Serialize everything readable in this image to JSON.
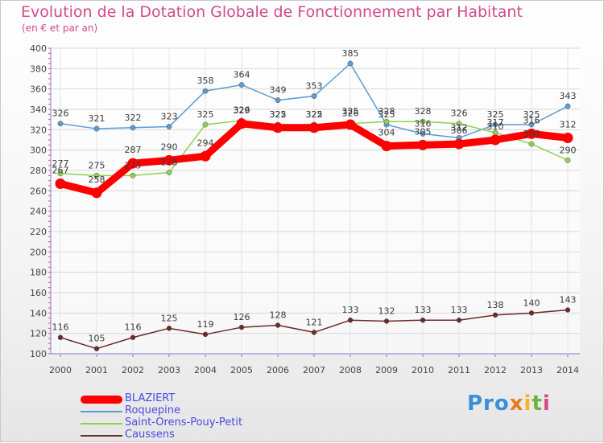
{
  "chart_data": {
    "type": "line",
    "title": "Evolution de la Dotation Globale de Fonctionnement par Habitant",
    "subtitle": "(en € et par an)",
    "x": [
      "2000",
      "2001",
      "2002",
      "2003",
      "2004",
      "2005",
      "2006",
      "2007",
      "2008",
      "2009",
      "2010",
      "2011",
      "2012",
      "2013",
      "2014"
    ],
    "ylim": [
      100,
      400
    ],
    "yticks": [
      100,
      120,
      140,
      160,
      180,
      200,
      220,
      240,
      260,
      280,
      300,
      320,
      340,
      360,
      380,
      400
    ],
    "series": [
      {
        "name": "Roquepine",
        "color": "#5b9bd5",
        "values": [
          326,
          321,
          322,
          323,
          358,
          364,
          349,
          353,
          385,
          325,
          316,
          312,
          325,
          325,
          343
        ]
      },
      {
        "name": "Saint-Orens-Pouy-Petit",
        "color": "#8fd14f",
        "values": [
          277,
          275,
          275,
          278,
          325,
          329,
          325,
          325,
          326,
          328,
          328,
          326,
          317,
          306,
          290
        ]
      },
      {
        "name": "Caussens",
        "color": "#6b2a2a",
        "values": [
          116,
          105,
          116,
          125,
          119,
          126,
          128,
          121,
          133,
          132,
          133,
          133,
          138,
          140,
          143
        ]
      },
      {
        "name": "BLAZIERT",
        "color": "#ff0000",
        "values": [
          267,
          258,
          287,
          290,
          294,
          326,
          322,
          322,
          325,
          304,
          305,
          306,
          310,
          316,
          312
        ]
      }
    ],
    "value_labels": [
      {
        "name": "Roquepine",
        "values": [
          "326",
          "321",
          "322",
          "323",
          "358",
          "364",
          "349",
          "353",
          "385",
          "325",
          "316",
          "312",
          "325",
          "325",
          "343"
        ]
      },
      {
        "name": "Saint-Orens-Pouy-Petit",
        "values": [
          "277",
          "275",
          "275",
          "278",
          "325",
          "329",
          "325",
          "325",
          "326",
          "328",
          "328",
          "326",
          "317",
          "306",
          "290"
        ]
      },
      {
        "name": "Caussens",
        "values": [
          "116",
          "105",
          "116",
          "125",
          "119",
          "126",
          "128",
          "121",
          "133",
          "132",
          "133",
          "133",
          "138",
          "140",
          "143"
        ]
      },
      {
        "name": "BLAZIERT",
        "values": [
          "267",
          "258",
          "287",
          "290",
          "294",
          "326",
          "322",
          "322",
          "325",
          "304",
          "305",
          "306",
          "310",
          "316",
          "312"
        ]
      }
    ],
    "legend": [
      {
        "label": "BLAZIERT",
        "color": "#ff0000"
      },
      {
        "label": "Roquepine",
        "color": "#5b9bd5"
      },
      {
        "label": "Saint-Orens-Pouy-Petit",
        "color": "#8fd14f"
      },
      {
        "label": "Caussens",
        "color": "#6b2a2a"
      }
    ],
    "grid": true
  },
  "logo": {
    "p1": "Pro",
    "p2": "x",
    "p3": "i",
    "p4": "t",
    "p5": "i"
  }
}
